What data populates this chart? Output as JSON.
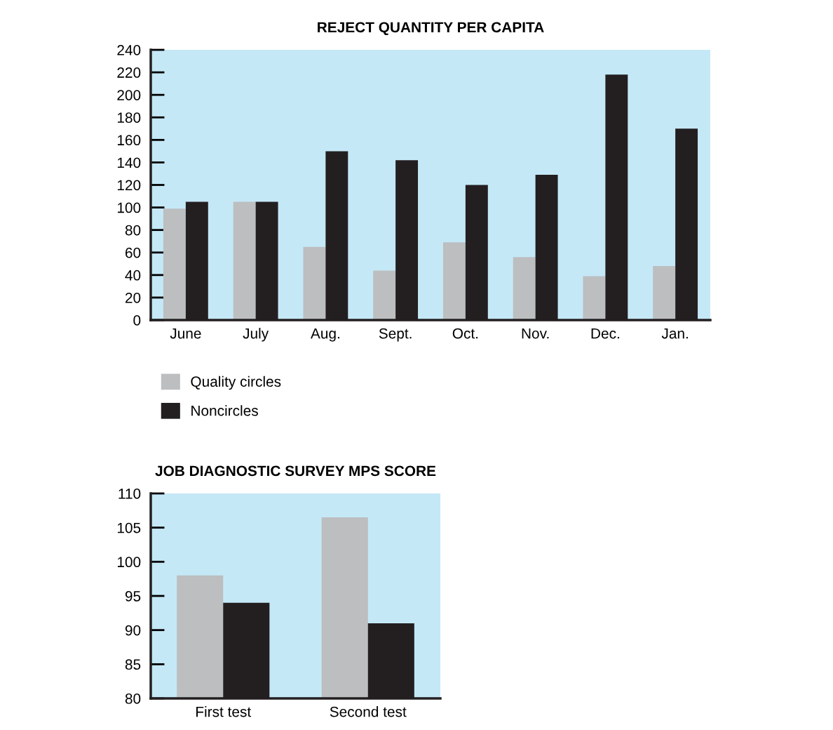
{
  "chart_data": [
    {
      "type": "bar",
      "title": "REJECT QUANTITY PER CAPITA",
      "categories": [
        "June",
        "July",
        "Aug.",
        "Sept.",
        "Oct.",
        "Nov.",
        "Dec.",
        "Jan."
      ],
      "series": [
        {
          "name": "Quality circles",
          "color": "#bcbec0",
          "values": [
            99,
            105,
            65,
            44,
            69,
            56,
            39,
            48
          ]
        },
        {
          "name": "Noncircles",
          "color": "#231f20",
          "values": [
            105,
            105,
            150,
            142,
            120,
            129,
            218,
            170
          ]
        }
      ],
      "ylim": [
        0,
        240
      ],
      "yticks": [
        0,
        20,
        40,
        60,
        80,
        100,
        120,
        140,
        160,
        180,
        200,
        220,
        240
      ],
      "grid": false,
      "legend": "bottom"
    },
    {
      "type": "bar",
      "title": "JOB DIAGNOSTIC SURVEY MPS SCORE",
      "categories": [
        "First test",
        "Second test"
      ],
      "series": [
        {
          "color": "#bcbec0",
          "values": [
            98,
            106.5
          ]
        },
        {
          "color": "#231f20",
          "values": [
            94,
            91
          ]
        }
      ],
      "ylim": [
        80,
        110
      ],
      "yticks": [
        80,
        85,
        90,
        95,
        100,
        105,
        110
      ],
      "grid": false
    }
  ]
}
